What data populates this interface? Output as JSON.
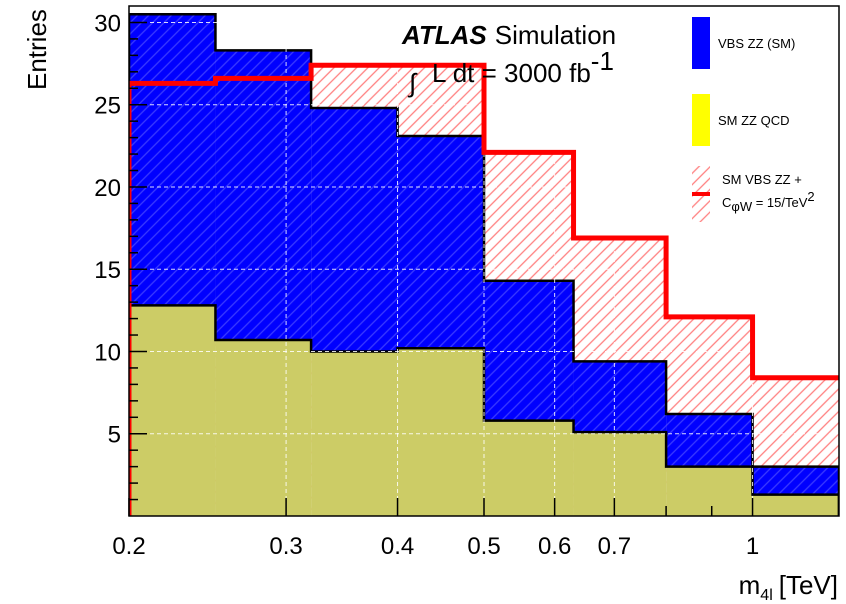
{
  "chart_data": {
    "type": "histogram",
    "xlabel": "m",
    "xlabel_sub": "4l",
    "xlabel_unit": "[TeV]",
    "ylabel": "Entries",
    "x_scale": "log",
    "xlim": [
      0.2,
      1.25
    ],
    "ylim": [
      0,
      31
    ],
    "x_ticks": [
      {
        "value": 0.2,
        "label": "0.2"
      },
      {
        "value": 0.3,
        "label": "0.3"
      },
      {
        "value": 0.4,
        "label": "0.4"
      },
      {
        "value": 0.5,
        "label": "0.5"
      },
      {
        "value": 0.6,
        "label": "0.6"
      },
      {
        "value": 0.7,
        "label": "0.7"
      },
      {
        "value": 1.0,
        "label": "1"
      }
    ],
    "y_ticks": [
      {
        "value": 5,
        "label": "5"
      },
      {
        "value": 10,
        "label": "10"
      },
      {
        "value": 15,
        "label": "15"
      },
      {
        "value": 20,
        "label": "20"
      },
      {
        "value": 25,
        "label": "25"
      },
      {
        "value": 30,
        "label": "30"
      }
    ],
    "bin_edges": [
      0.2,
      0.25,
      0.32,
      0.4,
      0.5,
      0.63,
      0.8,
      1.0,
      1.25
    ],
    "series": [
      {
        "name": "SM ZZ QCD",
        "color": "#cccc66",
        "style": "filled",
        "stacked": true,
        "values": [
          12.8,
          10.7,
          10.0,
          10.2,
          5.8,
          5.1,
          3.0,
          1.3
        ]
      },
      {
        "name": "VBS ZZ (SM)",
        "color": "#0000ff",
        "style": "filled",
        "stacked": true,
        "values": [
          17.7,
          17.6,
          14.8,
          12.9,
          8.5,
          4.3,
          3.2,
          1.7
        ]
      },
      {
        "name_line1": "SM VBS ZZ +",
        "name_coef": "C",
        "name_coef_sub": "φW",
        "name_rest": " = 15/TeV",
        "name_rest_sup": "2",
        "color": "#ff0000",
        "style": "hatched-line",
        "stacked": false,
        "values": [
          26.3,
          26.6,
          27.4,
          27.4,
          22.1,
          16.9,
          12.1,
          8.4
        ]
      }
    ],
    "annotation": {
      "brand": "ATLAS",
      "label": "Simulation",
      "lumi_integral": "∫",
      "lumi_text": "L dt = 3000 fb",
      "lumi_sup": "-1"
    },
    "legend": {
      "placement": "top-right",
      "entries": [
        {
          "label": "VBS ZZ (SM)",
          "color": "#0000ff"
        },
        {
          "label": "SM ZZ QCD",
          "color": "#ffff00"
        }
      ]
    },
    "grid": true,
    "grid_style": "dashed-white"
  }
}
